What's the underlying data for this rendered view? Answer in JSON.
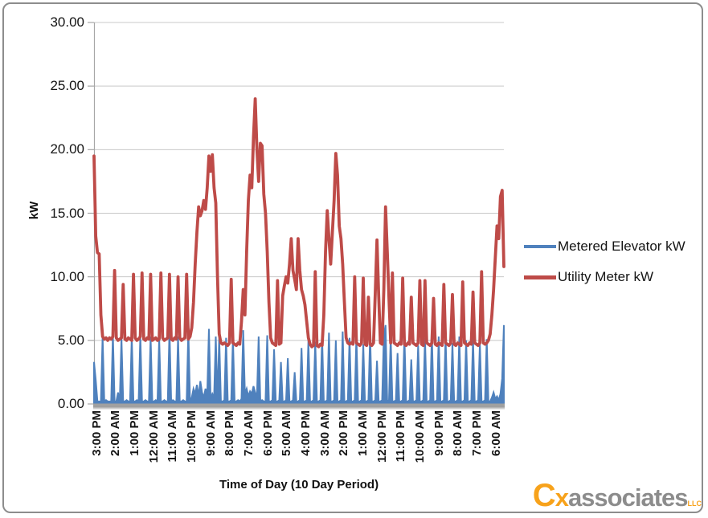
{
  "colors": {
    "blue_series": "#4F81BD",
    "red_series": "#BE4B48",
    "grid": "#C8C8C8",
    "axis": "#A6A6A6",
    "axis_band": "#A0A0A0",
    "axis_band_shadow": "#CDCDCD",
    "text": "#141414",
    "frame_border": "#8D8D8D",
    "logo_orange": "#F7A21B",
    "logo_gray": "#8C8C8C"
  },
  "logo": {
    "mark": "C",
    "mark2": "x",
    "name": "associates",
    "suffix": "LLC"
  },
  "chart_data": {
    "type": "line",
    "title": "",
    "xlabel": "Time of Day (10 Day Period)",
    "ylabel": "kW",
    "ylim": [
      0,
      30
    ],
    "grid": true,
    "legend_position": "right",
    "y_ticks": [
      "30.00",
      "25.00",
      "20.00",
      "15.00",
      "10.00",
      "5.00",
      "0.00"
    ],
    "x_labels": [
      "3:00 PM",
      "2:00 AM",
      "1:00 PM",
      "12:00 AM",
      "11:00 AM",
      "10:00 PM",
      "9:00 AM",
      "8:00 PM",
      "7:00 AM",
      "6:00 PM",
      "5:00 AM",
      "4:00 PM",
      "3:00 AM",
      "2:00 PM",
      "1:00 AM",
      "12:00 PM",
      "11:00 PM",
      "10:00 AM",
      "9:00 PM",
      "8:00 AM",
      "7:00 PM",
      "6:00 AM"
    ],
    "sample_interval_hours": 1,
    "series": [
      {
        "name": "Metered Elevator kW",
        "color": "#4F81BD",
        "style": "filled-spikes",
        "values": [
          3.3,
          1.9,
          0.2,
          0.2,
          0.2,
          5.3,
          0.2,
          0.3,
          0.2,
          0.2,
          0.2,
          5.5,
          0.2,
          0.2,
          0.9,
          0.2,
          5.2,
          0.2,
          0.2,
          0.3,
          0.2,
          0.2,
          5.3,
          0.2,
          0.2,
          0.3,
          0.2,
          5.4,
          0.2,
          0.2,
          0.3,
          0.2,
          0.2,
          5.3,
          0.2,
          0.2,
          0.3,
          0.2,
          5.2,
          0.2,
          0.2,
          0.3,
          0.2,
          0.2,
          5.9,
          0.2,
          0.3,
          0.2,
          0.2,
          5.3,
          0.2,
          0.2,
          0.3,
          0.2,
          0.2,
          5.8,
          0.2,
          0.5,
          1.2,
          0.8,
          1.5,
          0.6,
          1.8,
          0.9,
          0.5,
          1.2,
          0.7,
          5.9,
          0.4,
          0.8,
          0.5,
          5.3,
          0.2,
          5.3,
          0.2,
          0.2,
          0.3,
          5.2,
          0.2,
          0.2,
          0.3,
          5.2,
          0.2,
          0.2,
          0.3,
          0.2,
          0.4,
          5.8,
          0.8,
          1.2,
          0.6,
          1.0,
          0.8,
          1.4,
          0.9,
          0.5,
          5.3,
          0.2,
          0.3,
          0.2,
          0.2,
          5.4,
          0.2,
          0.2,
          0.3,
          4.3,
          0.2,
          0.2,
          0.3,
          3.3,
          0.2,
          0.2,
          0.3,
          3.6,
          0.2,
          0.2,
          0.3,
          2.5,
          0.2,
          0.2,
          0.3,
          4.4,
          0.2,
          0.2,
          0.3,
          5.0,
          0.2,
          0.2,
          0.3,
          4.9,
          0.2,
          0.2,
          0.3,
          5.3,
          0.2,
          0.2,
          0.3,
          5.6,
          0.2,
          0.2,
          0.3,
          5.0,
          0.2,
          0.2,
          0.3,
          5.7,
          0.2,
          0.2,
          0.3,
          5.2,
          0.2,
          0.2,
          0.3,
          5.3,
          0.2,
          0.2,
          0.3,
          4.7,
          0.2,
          0.2,
          0.3,
          5.5,
          0.2,
          0.2,
          0.3,
          3.4,
          0.2,
          0.2,
          0.3,
          5.4,
          6.2,
          0.2,
          0.3,
          5.3,
          0.2,
          0.2,
          0.3,
          4.0,
          0.2,
          0.2,
          0.3,
          5.4,
          0.2,
          0.2,
          0.3,
          3.5,
          0.2,
          0.2,
          0.3,
          4.6,
          0.2,
          0.2,
          0.3,
          5.2,
          0.2,
          0.2,
          0.3,
          5.5,
          0.2,
          0.2,
          0.3,
          5.3,
          0.2,
          0.2,
          0.3,
          5.3,
          0.2,
          0.2,
          0.3,
          4.8,
          0.2,
          0.2,
          0.3,
          5.3,
          0.2,
          0.2,
          0.3,
          5.0,
          0.2,
          0.2,
          0.3,
          5.2,
          0.2,
          0.2,
          0.3,
          4.8,
          0.2,
          0.2,
          0.3,
          5.1,
          0.2,
          0.2,
          0.5,
          0.9,
          0.4,
          0.6,
          0.3,
          0.8,
          2.0,
          6.2
        ]
      },
      {
        "name": "Utility Meter kW",
        "color": "#BE4B48",
        "style": "line",
        "values": [
          19.5,
          13.2,
          11.9,
          11.8,
          7.0,
          5.3,
          5.1,
          5.2,
          5.0,
          5.2,
          5.1,
          5.3,
          10.5,
          5.2,
          5.0,
          5.1,
          5.2,
          9.4,
          5.1,
          5.0,
          5.2,
          5.1,
          5.0,
          10.2,
          5.2,
          5.0,
          5.1,
          5.3,
          10.3,
          5.1,
          5.0,
          5.2,
          5.1,
          10.2,
          5.0,
          5.1,
          5.2,
          5.0,
          5.1,
          10.3,
          5.2,
          5.0,
          5.1,
          5.2,
          10.2,
          5.1,
          5.0,
          5.2,
          5.1,
          10.0,
          5.2,
          5.0,
          5.1,
          5.2,
          10.2,
          5.1,
          5.3,
          6.0,
          8.0,
          11.0,
          13.5,
          15.5,
          14.8,
          15.2,
          16.0,
          15.3,
          17.0,
          19.5,
          18.3,
          19.6,
          17.0,
          15.8,
          10.0,
          5.5,
          4.8,
          4.7,
          4.8,
          4.7,
          4.6,
          4.8,
          9.8,
          4.8,
          4.7,
          4.6,
          4.8,
          4.7,
          6.5,
          9.0,
          7.0,
          12.0,
          16.0,
          18.0,
          17.0,
          21.0,
          24.0,
          20.0,
          17.5,
          20.5,
          20.3,
          16.5,
          15.0,
          12.0,
          8.0,
          5.2,
          4.8,
          4.7,
          4.6,
          9.7,
          4.7,
          4.8,
          8.5,
          9.3,
          10.0,
          9.5,
          11.0,
          13.0,
          10.5,
          9.8,
          9.0,
          13.0,
          10.5,
          9.0,
          8.5,
          7.8,
          6.5,
          5.2,
          4.7,
          4.5,
          4.6,
          10.4,
          4.6,
          4.5,
          4.7,
          4.6,
          7.0,
          12.0,
          15.2,
          13.0,
          11.0,
          13.5,
          16.0,
          19.7,
          18.0,
          14.0,
          13.0,
          11.0,
          8.0,
          5.2,
          4.8,
          4.7,
          4.8,
          4.7,
          10.0,
          4.8,
          4.7,
          4.6,
          4.8,
          9.9,
          4.7,
          4.6,
          8.4,
          4.7,
          4.6,
          4.8,
          8.7,
          12.9,
          8.5,
          4.8,
          4.7,
          9.0,
          15.5,
          12.0,
          8.3,
          4.8,
          10.3,
          4.8,
          4.7,
          4.6,
          4.8,
          4.7,
          9.9,
          4.7,
          4.6,
          4.8,
          4.7,
          8.4,
          4.8,
          4.7,
          4.6,
          4.8,
          9.7,
          4.7,
          4.6,
          9.7,
          4.8,
          4.7,
          4.6,
          4.8,
          8.3,
          4.7,
          4.6,
          4.8,
          4.7,
          4.6,
          9.4,
          4.8,
          4.7,
          4.6,
          4.8,
          8.6,
          4.7,
          4.6,
          4.8,
          4.7,
          4.6,
          9.6,
          4.8,
          4.7,
          4.6,
          4.8,
          4.7,
          8.8,
          4.8,
          4.7,
          4.6,
          4.8,
          10.4,
          4.8,
          4.7,
          4.8,
          5.0,
          5.5,
          7.0,
          9.0,
          11.5,
          14.0,
          13.0,
          16.3,
          16.8,
          10.8
        ]
      }
    ]
  }
}
